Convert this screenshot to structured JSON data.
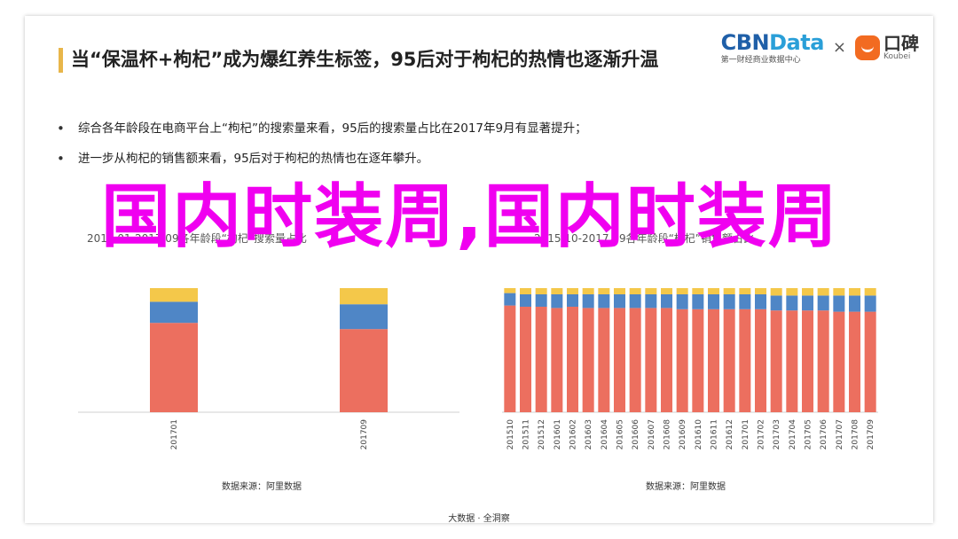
{
  "header": {
    "title": "当“保温杯+枸杞”成为爆红养生标签，95后对于枸杞的热情也逐渐升温",
    "logo_cbn_main": "CBN",
    "logo_cbn_data": "Data",
    "logo_cbn_sub": "第一财经商业数据中心",
    "logo_times": "×",
    "logo_koubei_cn": "口碑",
    "logo_koubei_en": "Koubei"
  },
  "bullets": [
    "综合各年龄段在电商平台上“枸杞”的搜索量来看，95后的搜索量占比在2017年9月有显著提升；",
    "进一步从枸杞的销售额来看，95后对于枸杞的热情也在逐年攀升。"
  ],
  "overlay_text": "国内时装周,国内时装周",
  "colors": {
    "red": "#ec6f5f",
    "blue": "#4f86c6",
    "yellow": "#f4c84a",
    "overlay": "#f000f0"
  },
  "chart_data": [
    {
      "type": "bar",
      "stacked": true,
      "title": "2017.01-2017.09各年龄段“枸杞”搜索量占比",
      "categories": [
        "201701",
        "201709"
      ],
      "series": [
        {
          "values": [
            72,
            67
          ]
        },
        {
          "values": [
            17,
            20
          ]
        },
        {
          "values": [
            11,
            13
          ]
        }
      ],
      "ylim": [
        0,
        100
      ],
      "source": "数据来源：阿里数据"
    },
    {
      "type": "bar",
      "stacked": true,
      "title": "2015.10-2017.09各年龄段“枸杞”销售额占比",
      "categories": [
        "201510",
        "201511",
        "201512",
        "201601",
        "201602",
        "201603",
        "201604",
        "201605",
        "201606",
        "201607",
        "201608",
        "201609",
        "201610",
        "201611",
        "201612",
        "201701",
        "201702",
        "201703",
        "201704",
        "201705",
        "201706",
        "201707",
        "201708",
        "201709"
      ],
      "series": [
        {
          "values": [
            86,
            85,
            85,
            84,
            85,
            84,
            84,
            84,
            84,
            84,
            84,
            83,
            83,
            83,
            83,
            83,
            83,
            82,
            82,
            82,
            82,
            81,
            81,
            81
          ]
        },
        {
          "values": [
            10,
            10,
            10,
            11,
            10,
            11,
            11,
            11,
            11,
            11,
            11,
            12,
            12,
            12,
            12,
            12,
            12,
            12,
            12,
            12,
            12,
            13,
            13,
            13
          ]
        },
        {
          "values": [
            4,
            5,
            5,
            5,
            5,
            5,
            5,
            5,
            5,
            5,
            5,
            5,
            5,
            5,
            5,
            5,
            5,
            6,
            6,
            6,
            6,
            6,
            6,
            6
          ]
        }
      ],
      "ylim": [
        0,
        100
      ],
      "source": "数据来源：阿里数据"
    }
  ],
  "footer": "大数据 · 全洞察"
}
